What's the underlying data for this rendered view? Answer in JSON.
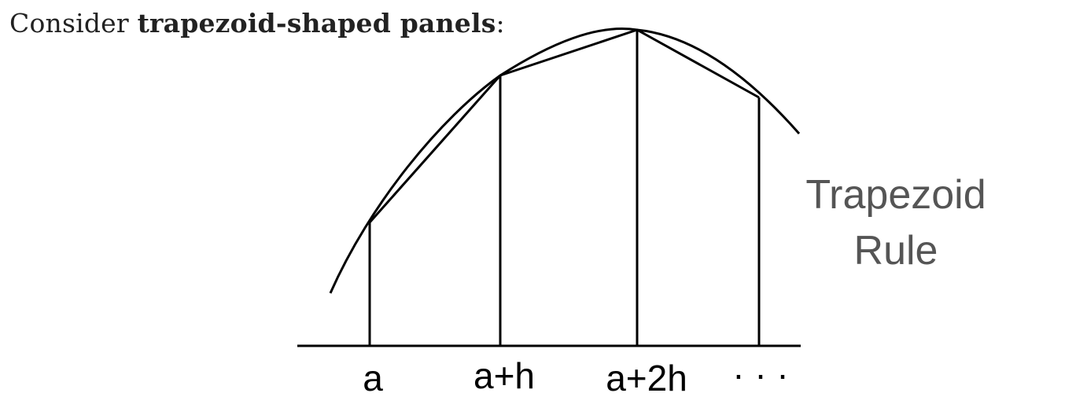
{
  "intro": {
    "prefix": "Consider ",
    "bold": "trapezoid-shaped panels",
    "suffix": ":"
  },
  "x_labels": [
    "a",
    "a+h",
    "a+2h",
    "· · ·"
  ],
  "rule_label": {
    "line1": "Trapezoid",
    "line2": "Rule"
  },
  "colors": {
    "curve": "#000000",
    "rule_label": "#555555"
  }
}
